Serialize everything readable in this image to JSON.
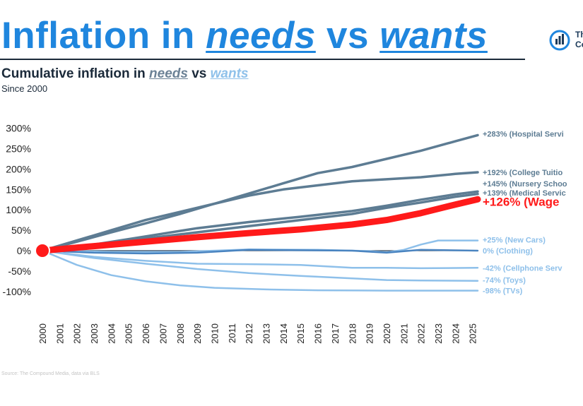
{
  "header": {
    "title_part1": "Inflation in ",
    "title_needs": "needs",
    "title_vs": " vs ",
    "title_wants": "wants",
    "logo_text_line1": "Th",
    "logo_text_line2": "Co"
  },
  "chart_data": {
    "type": "line",
    "title": "Cumulative inflation in needs vs wants",
    "title_parts": {
      "prefix": "Cumulative inflation in ",
      "needs": "needs",
      "vs": " vs ",
      "wants": "wants"
    },
    "subtitle": "Since 2000",
    "source": "Source: The Compound Media, data via BLS",
    "xlabel": "",
    "ylabel": "",
    "ylim": [
      -100,
      300
    ],
    "xlim": [
      2000,
      2025.3
    ],
    "yticks": [
      300,
      250,
      200,
      150,
      100,
      50,
      0,
      -50,
      -100
    ],
    "ytick_labels": [
      "300%",
      "250%",
      "200%",
      "150%",
      "100%",
      "50%",
      "0%",
      "-50%",
      "-100%"
    ],
    "xticks": [
      "2000",
      "2001",
      "2002",
      "2003",
      "2004",
      "2005",
      "2006",
      "2007",
      "2008",
      "2009",
      "2010",
      "2011",
      "2012",
      "2013",
      "2014",
      "2015",
      "2016",
      "2017",
      "2018",
      "2019",
      "2020",
      "2021",
      "2022",
      "2023",
      "2024",
      "2025"
    ],
    "grid": false,
    "legend": "none",
    "colors": {
      "needs": "#5d7c93",
      "wants": "#8ec0ea",
      "wages": "#ff1a1a",
      "clothing": "#4a84c0"
    },
    "series": [
      {
        "label": "+283% (Hospital Servi",
        "group": "needs",
        "color": "#5d7c93",
        "points": [
          [
            2000,
            0
          ],
          [
            2002,
            22
          ],
          [
            2004,
            45
          ],
          [
            2006,
            67
          ],
          [
            2008,
            90
          ],
          [
            2010,
            115
          ],
          [
            2012,
            140
          ],
          [
            2014,
            165
          ],
          [
            2016,
            190
          ],
          [
            2018,
            205
          ],
          [
            2020,
            225
          ],
          [
            2022,
            245
          ],
          [
            2024,
            268
          ],
          [
            2025.3,
            283
          ]
        ]
      },
      {
        "label": "+192% (College Tuitio",
        "group": "needs",
        "color": "#5d7c93",
        "points": [
          [
            2000,
            0
          ],
          [
            2002,
            25
          ],
          [
            2004,
            50
          ],
          [
            2006,
            75
          ],
          [
            2008,
            95
          ],
          [
            2010,
            115
          ],
          [
            2012,
            135
          ],
          [
            2014,
            150
          ],
          [
            2016,
            160
          ],
          [
            2018,
            170
          ],
          [
            2020,
            175
          ],
          [
            2022,
            180
          ],
          [
            2024,
            188
          ],
          [
            2025.3,
            192
          ]
        ]
      },
      {
        "label": "+145% (Nursery Schoo",
        "group": "needs",
        "color": "#5d7c93",
        "points": [
          [
            2000,
            0
          ],
          [
            2003,
            15
          ],
          [
            2006,
            35
          ],
          [
            2009,
            55
          ],
          [
            2012,
            70
          ],
          [
            2015,
            83
          ],
          [
            2018,
            97
          ],
          [
            2020,
            110
          ],
          [
            2022,
            125
          ],
          [
            2024,
            138
          ],
          [
            2025.3,
            145
          ]
        ]
      },
      {
        "label": "+139% (Medical Servic",
        "group": "needs",
        "color": "#5d7c93",
        "points": [
          [
            2000,
            0
          ],
          [
            2003,
            14
          ],
          [
            2006,
            30
          ],
          [
            2009,
            45
          ],
          [
            2012,
            60
          ],
          [
            2015,
            75
          ],
          [
            2018,
            90
          ],
          [
            2020,
            105
          ],
          [
            2022,
            118
          ],
          [
            2024,
            132
          ],
          [
            2025.3,
            139
          ]
        ]
      },
      {
        "label": "+126% (Wage",
        "group": "wages",
        "color": "#ff1a1a",
        "points": [
          [
            2000,
            0
          ],
          [
            2003,
            11
          ],
          [
            2006,
            22
          ],
          [
            2009,
            33
          ],
          [
            2012,
            43
          ],
          [
            2015,
            52
          ],
          [
            2018,
            64
          ],
          [
            2020,
            75
          ],
          [
            2022,
            92
          ],
          [
            2024,
            113
          ],
          [
            2025.3,
            126
          ]
        ]
      },
      {
        "label": "+25% (New Cars)",
        "group": "wants",
        "color": "#8ec0ea",
        "points": [
          [
            2000,
            0
          ],
          [
            2004,
            -3
          ],
          [
            2008,
            -3
          ],
          [
            2012,
            3
          ],
          [
            2016,
            2
          ],
          [
            2019,
            -1
          ],
          [
            2020,
            -4
          ],
          [
            2021,
            2
          ],
          [
            2022,
            15
          ],
          [
            2023,
            25
          ],
          [
            2025.3,
            25
          ]
        ]
      },
      {
        "label": "0% (Clothing)",
        "group": "wants",
        "color": "#4a84c0",
        "points": [
          [
            2000,
            0
          ],
          [
            2003,
            -5
          ],
          [
            2006,
            -7
          ],
          [
            2009,
            -5
          ],
          [
            2012,
            2
          ],
          [
            2015,
            1
          ],
          [
            2018,
            0
          ],
          [
            2020,
            -5
          ],
          [
            2022,
            2
          ],
          [
            2025.3,
            0
          ]
        ]
      },
      {
        "label": "-42% (Cellphone Serv",
        "group": "wants",
        "color": "#8ec0ea",
        "points": [
          [
            2000,
            0
          ],
          [
            2003,
            -15
          ],
          [
            2006,
            -25
          ],
          [
            2009,
            -32
          ],
          [
            2012,
            -33
          ],
          [
            2015,
            -35
          ],
          [
            2018,
            -42
          ],
          [
            2020,
            -42
          ],
          [
            2022,
            -43
          ],
          [
            2025.3,
            -42
          ]
        ]
      },
      {
        "label": "-74% (Toys)",
        "group": "wants",
        "color": "#8ec0ea",
        "points": [
          [
            2000,
            0
          ],
          [
            2003,
            -18
          ],
          [
            2006,
            -32
          ],
          [
            2009,
            -45
          ],
          [
            2012,
            -55
          ],
          [
            2015,
            -62
          ],
          [
            2018,
            -68
          ],
          [
            2020,
            -72
          ],
          [
            2022,
            -73
          ],
          [
            2025.3,
            -74
          ]
        ]
      },
      {
        "label": "-98% (TVs)",
        "group": "wants",
        "color": "#8ec0ea",
        "points": [
          [
            2000,
            0
          ],
          [
            2002,
            -35
          ],
          [
            2004,
            -60
          ],
          [
            2006,
            -75
          ],
          [
            2008,
            -85
          ],
          [
            2010,
            -91
          ],
          [
            2013,
            -95
          ],
          [
            2016,
            -97
          ],
          [
            2020,
            -98
          ],
          [
            2025.3,
            -98
          ]
        ]
      }
    ],
    "label_y_values": [
      286,
      192,
      164,
      142,
      120,
      27,
      0,
      -42,
      -72,
      -98
    ]
  }
}
